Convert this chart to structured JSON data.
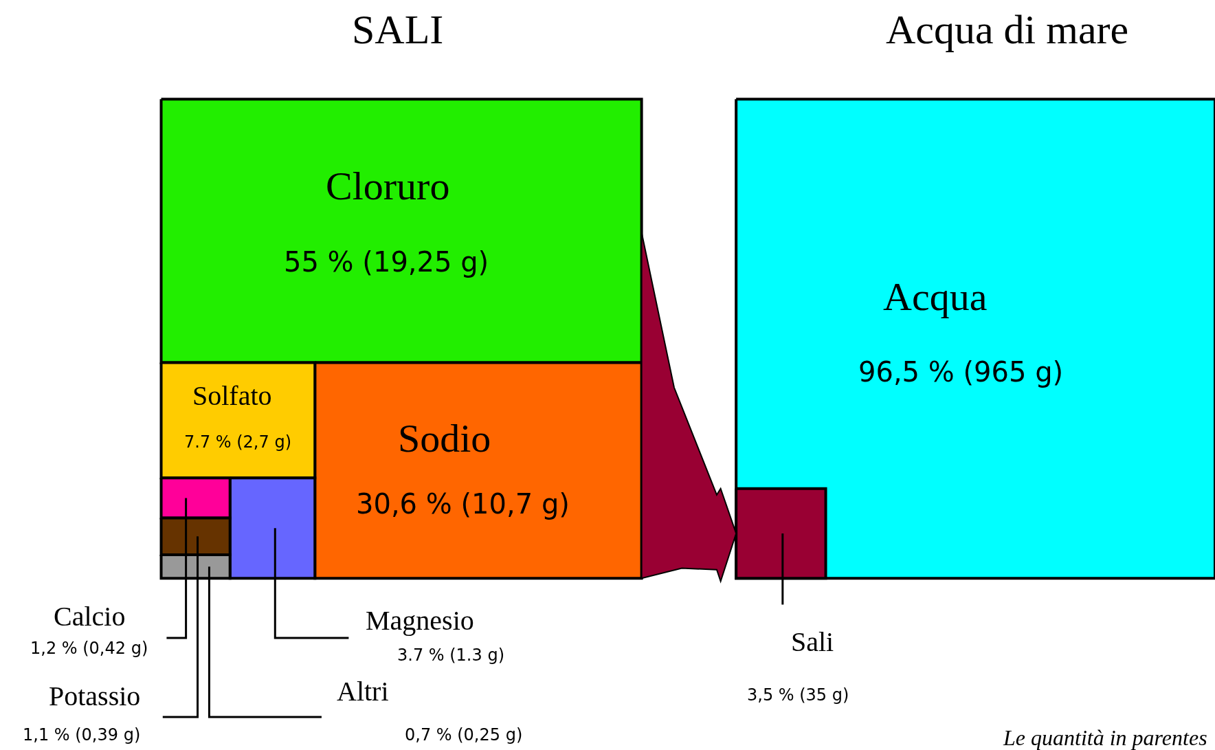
{
  "chart_data": [
    {
      "type": "other",
      "title": "SALI",
      "categories": [
        "Cloruro",
        "Sodio",
        "Solfato",
        "Magnesio",
        "Calcio",
        "Potassio",
        "Altri"
      ],
      "values": [
        55,
        30.6,
        7.7,
        3.7,
        1.2,
        1.1,
        0.7
      ],
      "value_labels": [
        "55 % (19,25 g)",
        "30,6 % (10,7 g)",
        "7.7 % (2,7 g)",
        "3.7 % (1.3 g)",
        "1,2 % (0,42 g)",
        "1,1 % (0,39 g)",
        "0,7 % (0,25 g)"
      ],
      "colors": [
        "#22ee00",
        "#ff6600",
        "#ffcc00",
        "#6666ff",
        "#ff0099",
        "#663300",
        "#999999"
      ]
    },
    {
      "type": "other",
      "title": "Acqua di mare",
      "categories": [
        "Acqua",
        "Sali"
      ],
      "values": [
        96.5,
        3.5
      ],
      "value_labels": [
        "96,5 % (965 g)",
        "3,5 % (35 g)"
      ],
      "colors": [
        "#00ffff",
        "#990033"
      ],
      "annotations": [
        "Le quantità in parentes"
      ]
    }
  ]
}
